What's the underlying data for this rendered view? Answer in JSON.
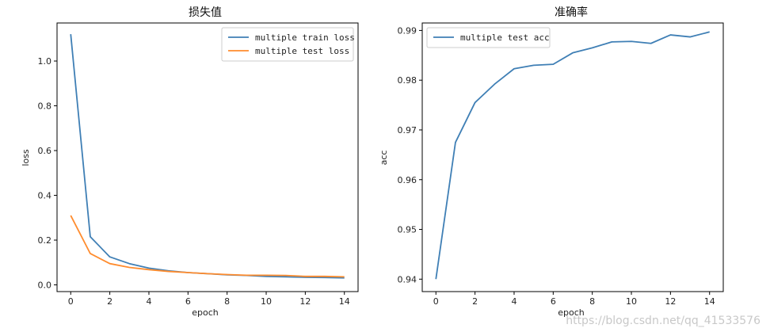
{
  "chart_data": [
    {
      "type": "line",
      "title": "损失值",
      "xlabel": "epoch",
      "ylabel": "loss",
      "xlim": [
        -0.7,
        14.7
      ],
      "ylim": [
        -0.03,
        1.17
      ],
      "xticks": [
        0,
        2,
        4,
        6,
        8,
        10,
        12,
        14
      ],
      "yticks": [
        0.0,
        0.2,
        0.4,
        0.6,
        0.8,
        1.0
      ],
      "ytick_labels": [
        "0.0",
        "0.2",
        "0.4",
        "0.6",
        "0.8",
        "1.0"
      ],
      "legend_position": "top-right",
      "x": [
        0,
        1,
        2,
        3,
        4,
        5,
        6,
        7,
        8,
        9,
        10,
        11,
        12,
        13,
        14
      ],
      "series": [
        {
          "name": "multiple train loss",
          "color": "#3f7fb5",
          "values": [
            1.12,
            0.215,
            0.125,
            0.095,
            0.075,
            0.063,
            0.055,
            0.05,
            0.045,
            0.042,
            0.038,
            0.036,
            0.034,
            0.033,
            0.031
          ]
        },
        {
          "name": "multiple test loss",
          "color": "#ff8c2e",
          "values": [
            0.31,
            0.14,
            0.095,
            0.078,
            0.068,
            0.06,
            0.055,
            0.05,
            0.046,
            0.043,
            0.043,
            0.042,
            0.038,
            0.038,
            0.036
          ]
        }
      ]
    },
    {
      "type": "line",
      "title": "准确率",
      "xlabel": "epoch",
      "ylabel": "acc",
      "xlim": [
        -0.7,
        14.7
      ],
      "ylim": [
        0.9375,
        0.9915
      ],
      "xticks": [
        0,
        2,
        4,
        6,
        8,
        10,
        12,
        14
      ],
      "yticks": [
        0.94,
        0.95,
        0.96,
        0.97,
        0.98,
        0.99
      ],
      "ytick_labels": [
        "0.94",
        "0.95",
        "0.96",
        "0.97",
        "0.98",
        "0.99"
      ],
      "legend_position": "top-left",
      "x": [
        0,
        1,
        2,
        3,
        4,
        5,
        6,
        7,
        8,
        9,
        10,
        11,
        12,
        13,
        14
      ],
      "series": [
        {
          "name": "multiple test acc",
          "color": "#3f7fb5",
          "values": [
            0.94,
            0.9675,
            0.9755,
            0.9792,
            0.9823,
            0.983,
            0.9832,
            0.9855,
            0.9865,
            0.9877,
            0.9878,
            0.9874,
            0.9891,
            0.9887,
            0.9897
          ]
        }
      ]
    }
  ],
  "watermark": "https://blog.csdn.net/qq_41533576"
}
